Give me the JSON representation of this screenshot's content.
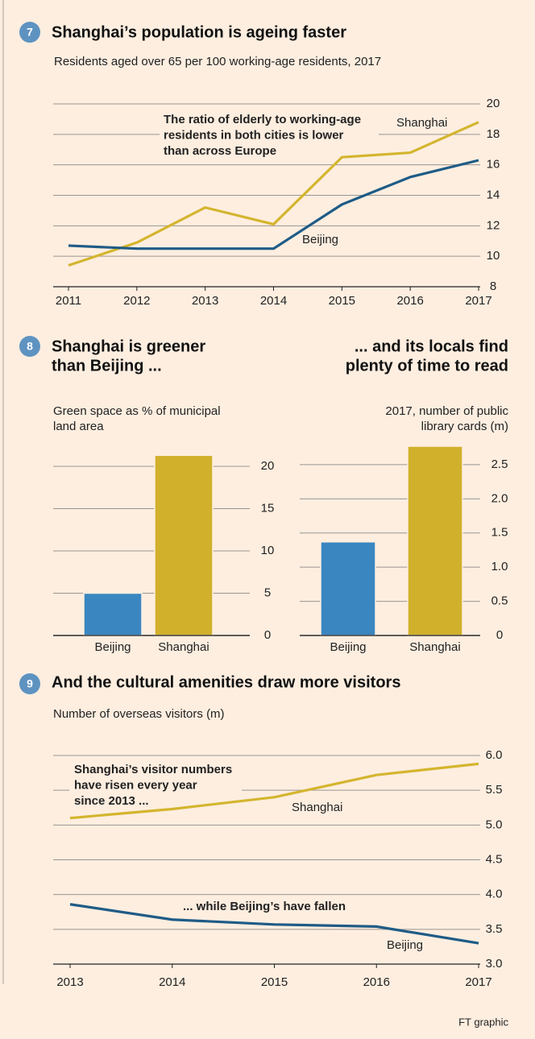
{
  "chart_data": [
    {
      "type": "line",
      "number": "7",
      "title": [
        "Shanghai’s population is ageing faster"
      ],
      "subtitle": [
        "Residents aged over 65 per 100 working-age residents, 2017"
      ],
      "x": [
        2011,
        2012,
        2013,
        2014,
        2015,
        2016,
        2017
      ],
      "xlim": [
        2011,
        2017
      ],
      "series": [
        {
          "name": "Shanghai",
          "color": "#d4b52e",
          "values": [
            9.4,
            10.9,
            13.2,
            12.1,
            16.5,
            16.8,
            18.8
          ]
        },
        {
          "name": "Beijing",
          "color": "#1e5b86",
          "values": [
            10.7,
            10.5,
            10.5,
            10.5,
            13.4,
            15.2,
            16.3
          ]
        }
      ],
      "ylim": [
        8,
        20
      ],
      "yticks": [
        8,
        10,
        12,
        14,
        16,
        18,
        20
      ],
      "grid": true,
      "annotations": [
        [
          "The ratio of elderly to working-age",
          "residents in both cities is lower",
          "than across Europe"
        ]
      ]
    },
    {
      "type": "bar",
      "number": "8",
      "title": [
        "Shanghai is greener",
        "than Beijing ..."
      ],
      "subtitle": [
        "Green space as % of municipal",
        "land area"
      ],
      "categories": [
        "Beijing",
        "Shanghai"
      ],
      "values": [
        5,
        21.3
      ],
      "colors": [
        "#3a86c0",
        "#d1b02c"
      ],
      "ylim": [
        0,
        22
      ],
      "yticks": [
        0,
        5,
        10,
        15,
        20
      ],
      "grid": true
    },
    {
      "type": "bar",
      "title": [
        "... and its locals find",
        "plenty of time to read"
      ],
      "subtitle": [
        "2017, number of public",
        "library cards (m)"
      ],
      "categories": [
        "Beijing",
        "Shanghai"
      ],
      "values": [
        1.37,
        2.77
      ],
      "colors": [
        "#3a86c0",
        "#d1b02c"
      ],
      "ylim": [
        0,
        2.9
      ],
      "yticks": [
        0,
        0.5,
        {
          "value": 1,
          "label": "1.0"
        },
        1.5,
        {
          "value": 2,
          "label": "2.0"
        },
        2.5
      ],
      "grid": true
    },
    {
      "type": "line",
      "number": "9",
      "title": [
        "And the cultural amenities draw more visitors"
      ],
      "subtitle": [
        "Number of overseas visitors (m)"
      ],
      "x": [
        2013,
        2014,
        2015,
        2016,
        2017
      ],
      "xlim": [
        2013,
        2017
      ],
      "series": [
        {
          "name": "Shanghai",
          "color": "#d4b52e",
          "values": [
            5.1,
            5.23,
            5.4,
            5.72,
            5.88
          ]
        },
        {
          "name": "Beijing",
          "color": "#1e5b86",
          "values": [
            3.86,
            3.64,
            3.57,
            3.54,
            3.3
          ]
        }
      ],
      "ylim": [
        3,
        6
      ],
      "yticks": [
        {
          "value": 3,
          "label": "3.0"
        },
        3.5,
        {
          "value": 4,
          "label": "4.0"
        },
        4.5,
        {
          "value": 5,
          "label": "5.0"
        },
        5.5,
        {
          "value": 6,
          "label": "6.0"
        }
      ],
      "grid": true,
      "annotations": [
        [
          "Shanghai’s visitor numbers",
          "have risen every year",
          "since 2013 ..."
        ],
        [
          "... while Beijing’s have fallen"
        ]
      ]
    }
  ],
  "source": "FT graphic"
}
